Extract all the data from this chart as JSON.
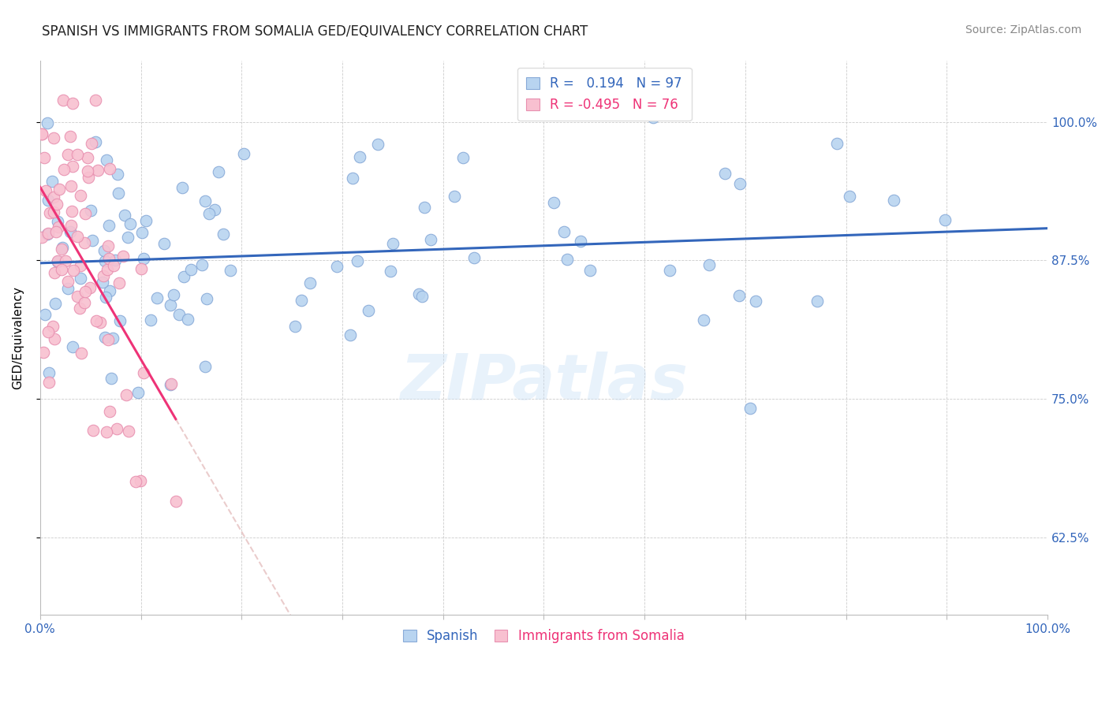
{
  "title": "SPANISH VS IMMIGRANTS FROM SOMALIA GED/EQUIVALENCY CORRELATION CHART",
  "source": "Source: ZipAtlas.com",
  "ylabel": "GED/Equivalency",
  "ytick_labels": [
    "62.5%",
    "75.0%",
    "87.5%",
    "100.0%"
  ],
  "ytick_values": [
    0.625,
    0.75,
    0.875,
    1.0
  ],
  "xmin": 0.0,
  "xmax": 1.0,
  "ymin": 0.555,
  "ymax": 1.055,
  "R_blue": 0.194,
  "N_blue": 97,
  "R_pink": -0.495,
  "N_pink": 76,
  "blue_color": "#b8d4f0",
  "blue_edge": "#88aad8",
  "pink_color": "#f8c0d0",
  "pink_edge": "#e890b0",
  "blue_line_color": "#3366bb",
  "pink_line_color": "#ee3377",
  "legend_label_blue": "Spanish",
  "legend_label_pink": "Immigrants from Somalia",
  "watermark": "ZIPatlas",
  "title_fontsize": 12,
  "axis_label_fontsize": 11,
  "tick_fontsize": 11,
  "source_fontsize": 10,
  "legend_fontsize": 12
}
